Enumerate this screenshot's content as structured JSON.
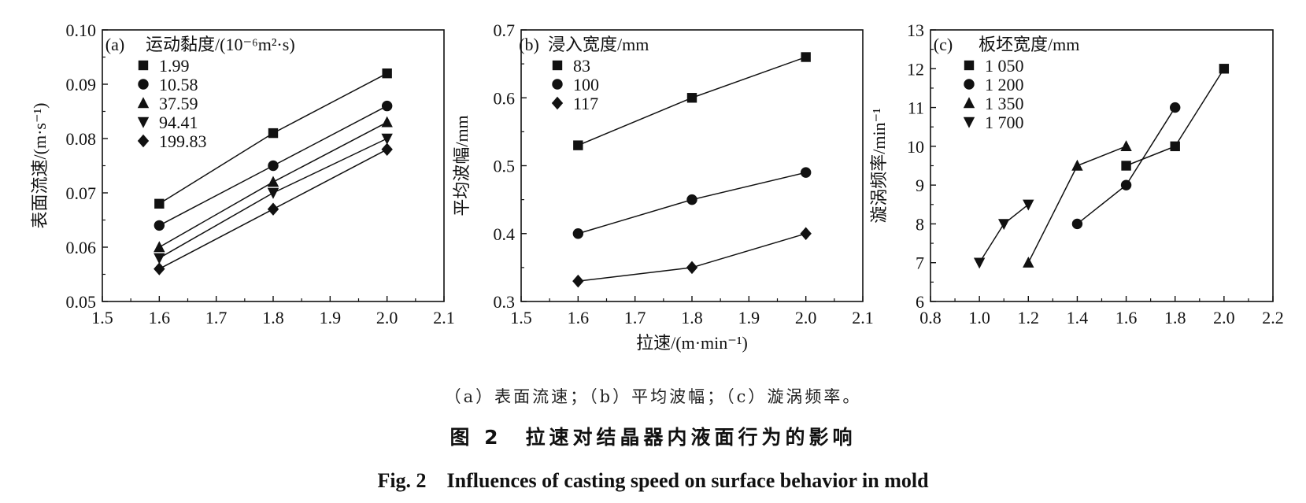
{
  "chart_data": [
    {
      "type": "line",
      "panel": "(a)",
      "legend_title": "运动黏度/(10⁻⁶m²·s)",
      "legend_position": "top-left",
      "ylabel": "表面流速/(m·s⁻¹)",
      "xlabel": "",
      "xlim": [
        1.5,
        2.1
      ],
      "ylim": [
        0.05,
        0.1
      ],
      "xticks": [
        "1.5",
        "1.6",
        "1.7",
        "1.8",
        "1.9",
        "2.0",
        "2.1"
      ],
      "yticks": [
        "0.05",
        "0.06",
        "0.07",
        "0.08",
        "0.09",
        "0.10"
      ],
      "x": [
        1.6,
        1.8,
        2.0
      ],
      "series": [
        {
          "name": "1.99",
          "marker": "square",
          "values": [
            0.068,
            0.081,
            0.092
          ]
        },
        {
          "name": "10.58",
          "marker": "circle",
          "values": [
            0.064,
            0.075,
            0.086
          ]
        },
        {
          "name": "37.59",
          "marker": "triangle-up",
          "values": [
            0.06,
            0.072,
            0.083
          ]
        },
        {
          "name": "94.41",
          "marker": "triangle-down",
          "values": [
            0.058,
            0.07,
            0.08
          ]
        },
        {
          "name": "199.83",
          "marker": "diamond",
          "values": [
            0.056,
            0.067,
            0.078
          ]
        }
      ]
    },
    {
      "type": "line",
      "panel": "(b)",
      "legend_title": "浸入宽度/mm",
      "legend_position": "top-left",
      "ylabel": "平均波幅/mm",
      "xlabel": "拉速/(m·min⁻¹)",
      "xlim": [
        1.5,
        2.1
      ],
      "ylim": [
        0.3,
        0.7
      ],
      "xticks": [
        "1.5",
        "1.6",
        "1.7",
        "1.8",
        "1.9",
        "2.0",
        "2.1"
      ],
      "yticks": [
        "0.3",
        "0.4",
        "0.5",
        "0.6",
        "0.7"
      ],
      "x": [
        1.6,
        1.8,
        2.0
      ],
      "series": [
        {
          "name": "83",
          "marker": "square",
          "values": [
            0.53,
            0.6,
            0.66
          ]
        },
        {
          "name": "100",
          "marker": "circle",
          "values": [
            0.4,
            0.45,
            0.49
          ]
        },
        {
          "name": "117",
          "marker": "diamond",
          "values": [
            0.33,
            0.35,
            0.4
          ]
        }
      ]
    },
    {
      "type": "line",
      "panel": "(c)",
      "legend_title": "板坯宽度/mm",
      "legend_position": "top-left",
      "ylabel": "漩涡频率/min⁻¹",
      "xlabel": "",
      "xlim": [
        0.8,
        2.2
      ],
      "ylim": [
        6,
        13
      ],
      "xticks": [
        "0.8",
        "1.0",
        "1.2",
        "1.4",
        "1.6",
        "1.8",
        "2.0",
        "2.2"
      ],
      "yticks": [
        "6",
        "7",
        "8",
        "9",
        "10",
        "11",
        "12",
        "13"
      ],
      "series": [
        {
          "name": "1 050",
          "marker": "square",
          "x": [
            1.6,
            1.8,
            2.0
          ],
          "values": [
            9.5,
            10.0,
            12.0
          ]
        },
        {
          "name": "1 200",
          "marker": "circle",
          "x": [
            1.4,
            1.6,
            1.8
          ],
          "values": [
            8.0,
            9.0,
            11.0
          ]
        },
        {
          "name": "1 350",
          "marker": "triangle-up",
          "x": [
            1.2,
            1.4,
            1.6
          ],
          "values": [
            7.0,
            9.5,
            10.0
          ]
        },
        {
          "name": "1 700",
          "marker": "triangle-down",
          "x": [
            1.0,
            1.1,
            1.2
          ],
          "values": [
            7.0,
            8.0,
            8.5
          ]
        }
      ]
    }
  ],
  "captions": {
    "sub": "（a）表面流速；（b）平均波幅；（c）漩涡频率。",
    "figure_cn": "图 2　拉速对结晶器内液面行为的影响",
    "figure_en": "Fig. 2　Influences of casting speed on surface behavior in mold"
  }
}
